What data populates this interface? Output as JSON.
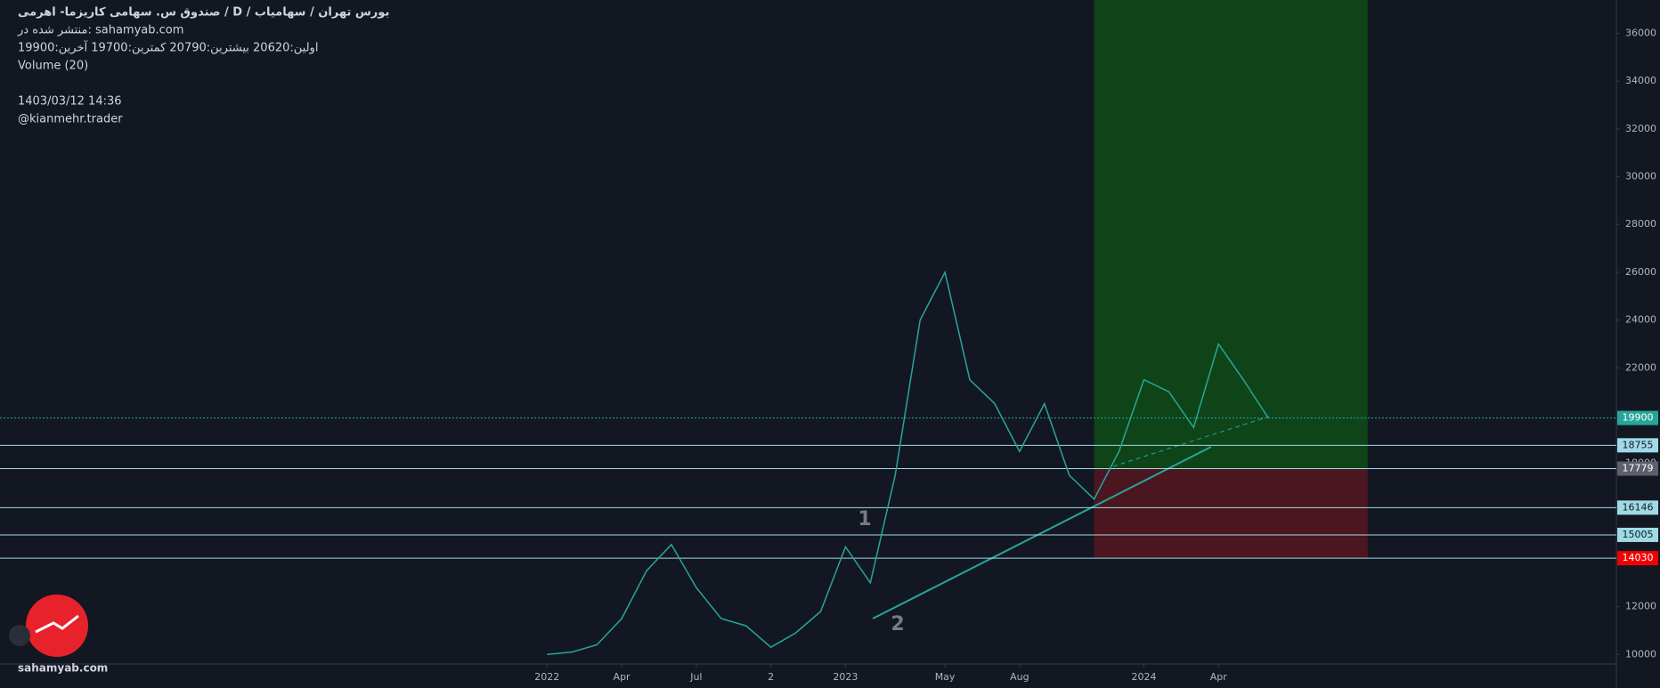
{
  "header": {
    "title": "صندوق س. سهامی کاریزما- اهرمی / D / بورس تهران / سهامیاب",
    "source": "منتشر شده در: sahamyab.com",
    "ohlc": "اولین:20620 بیشترین:20790 کمترین:19700 آخرین:19900",
    "volume": "Volume (20)",
    "date": "1403/03/12 14:36",
    "author": "@kianmehr.trader",
    "watermark": "sahamyab.com"
  },
  "chart_data": {
    "type": "line",
    "x": [
      "2022-01",
      "2022-02",
      "2022-03",
      "2022-04",
      "2022-05",
      "2022-06",
      "2022-07",
      "2022-08",
      "2022-09",
      "2022-10",
      "2022-11",
      "2022-12",
      "2023-01",
      "2023-02",
      "2023-03",
      "2023-04",
      "2023-05",
      "2023-06",
      "2023-07",
      "2023-08",
      "2023-09",
      "2023-10",
      "2023-11",
      "2023-12",
      "2024-01",
      "2024-02",
      "2024-03",
      "2024-04",
      "2024-05",
      "2024-06"
    ],
    "series": [
      {
        "color": "#26a69a",
        "values": [
          10000,
          10100,
          10400,
          11500,
          13500,
          14600,
          12800,
          11500,
          11200,
          10300,
          10900,
          11800,
          14500,
          13000,
          17500,
          24000,
          26000,
          21500,
          20500,
          18500,
          20500,
          17500,
          16500,
          18500,
          21500,
          21000,
          19500,
          23000,
          21500,
          19900
        ]
      }
    ],
    "xlim": [
      "2020-03",
      "2025-08"
    ],
    "xticks": [
      {
        "value": "2022-01",
        "label": "2022"
      },
      {
        "value": "2022-04",
        "label": "Apr"
      },
      {
        "value": "2022-07",
        "label": "Jul"
      },
      {
        "value": "2022-10",
        "label": "2"
      },
      {
        "value": "2023-01",
        "label": "2023"
      },
      {
        "value": "2023-05",
        "label": "May"
      },
      {
        "value": "2023-08",
        "label": "Aug"
      },
      {
        "value": "2024-01",
        "label": "2024"
      },
      {
        "value": "2024-04",
        "label": "Apr"
      }
    ],
    "ylim": [
      9600,
      37400
    ],
    "yticks": [
      10000,
      12000,
      14000,
      16000,
      18000,
      20000,
      22000,
      24000,
      26000,
      28000,
      30000,
      32000,
      34000,
      36000
    ],
    "price_lines": [
      {
        "value": 19900,
        "color": "#26a69a"
      },
      {
        "value": 18755,
        "color": "#9fdbe6"
      },
      {
        "value": 17779,
        "color": "#5d606b"
      },
      {
        "value": 16146,
        "color": "#9fdbe6"
      },
      {
        "value": 15005,
        "color": "#9fdbe6"
      },
      {
        "value": 14030,
        "color": "#f00000"
      }
    ],
    "position": {
      "start": "2023-11",
      "end": "2024-10",
      "entry": 17779,
      "stop": 14030
    },
    "annotations": [
      "1",
      "2"
    ]
  }
}
